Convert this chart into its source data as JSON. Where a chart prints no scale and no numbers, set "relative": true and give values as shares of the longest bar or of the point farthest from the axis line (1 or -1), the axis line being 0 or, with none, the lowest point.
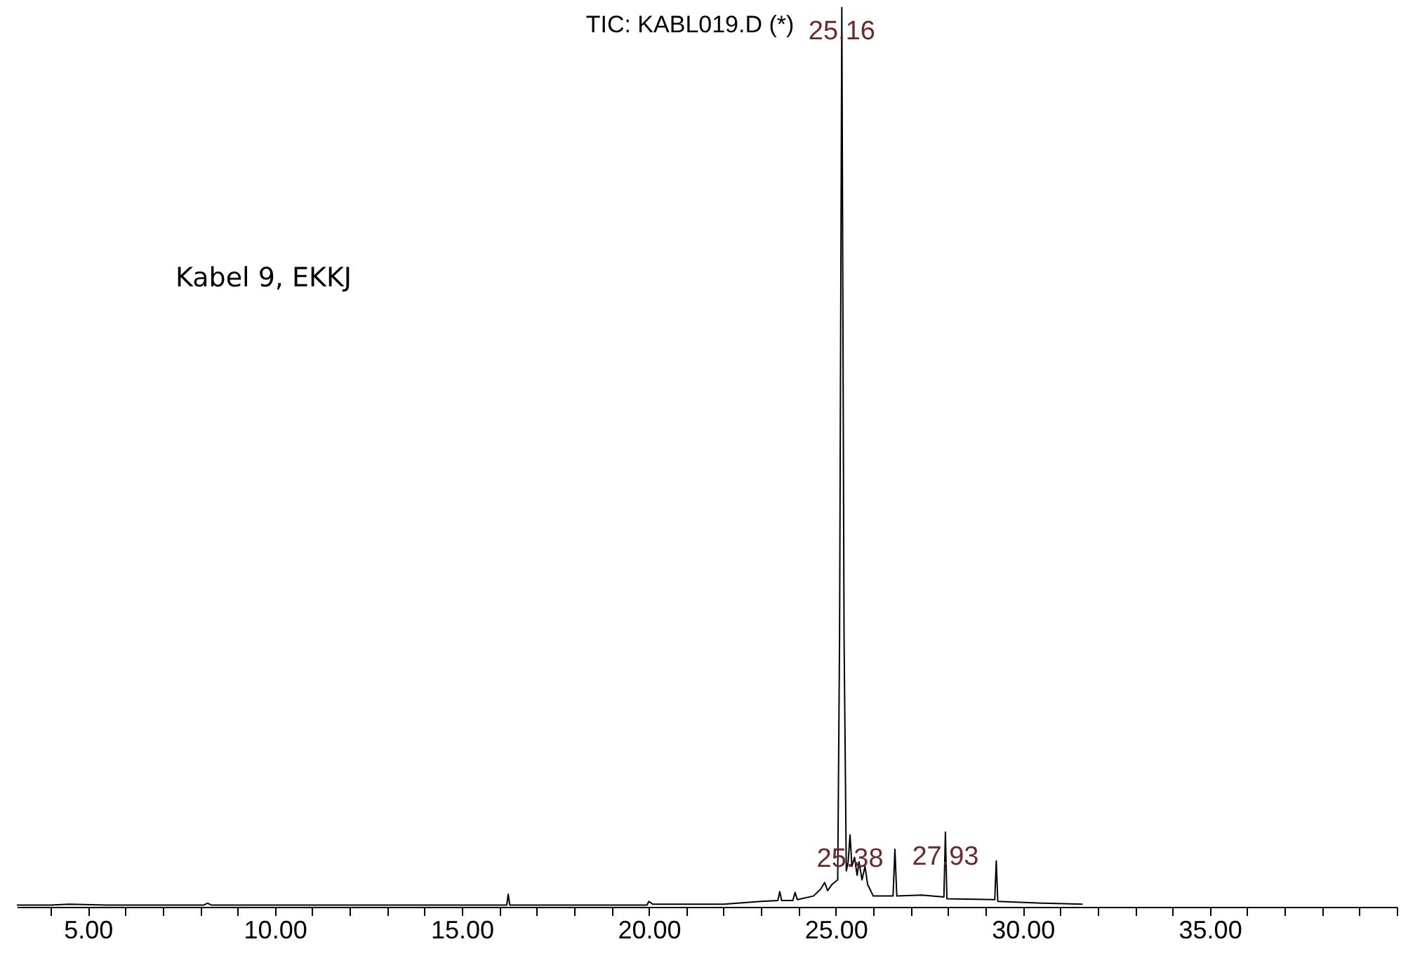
{
  "chart_data": {
    "type": "line",
    "title": "TIC: KABL019.D (*)",
    "relative": true,
    "x": [
      3.1,
      4.0,
      4.5,
      5.5,
      8.1,
      8.2,
      8.3,
      12,
      16.2,
      16.24,
      16.28,
      19.95,
      20.0,
      20.1,
      22,
      23.0,
      23.45,
      23.5,
      23.55,
      23.85,
      23.91,
      23.97,
      24.4,
      24.6,
      24.7,
      24.78,
      24.9,
      25.05,
      25.1,
      25.16,
      25.22,
      25.28,
      25.33,
      25.38,
      25.43,
      25.5,
      25.57,
      25.62,
      25.7,
      25.78,
      25.85,
      26.0,
      26.53,
      26.58,
      26.63,
      27.3,
      27.89,
      27.93,
      27.97,
      29.25,
      29.29,
      29.33,
      30.5,
      31.6
    ],
    "series": [
      {
        "color": "#000000",
        "values": [
          0.002,
          0.002,
          0.003,
          0.002,
          0.002,
          0.004,
          0.002,
          0.002,
          0.002,
          0.014,
          0.002,
          0.002,
          0.006,
          0.003,
          0.003,
          0.006,
          0.007,
          0.017,
          0.007,
          0.007,
          0.016,
          0.008,
          0.012,
          0.02,
          0.027,
          0.018,
          0.025,
          0.03,
          0.3,
          1.0,
          0.3,
          0.04,
          0.05,
          0.08,
          0.045,
          0.055,
          0.035,
          0.05,
          0.03,
          0.045,
          0.025,
          0.012,
          0.012,
          0.064,
          0.012,
          0.013,
          0.011,
          0.083,
          0.009,
          0.008,
          0.051,
          0.006,
          0.004,
          0.003
        ]
      }
    ],
    "xlim": [
      3.1,
      40.0
    ],
    "xticks": [
      {
        "value": 4,
        "label": null
      },
      {
        "value": 5,
        "label": "5.00"
      },
      {
        "value": 6,
        "label": null
      },
      {
        "value": 7,
        "label": null
      },
      {
        "value": 8,
        "label": null
      },
      {
        "value": 9,
        "label": null
      },
      {
        "value": 10,
        "label": "10.00"
      },
      {
        "value": 11,
        "label": null
      },
      {
        "value": 12,
        "label": null
      },
      {
        "value": 13,
        "label": null
      },
      {
        "value": 14,
        "label": null
      },
      {
        "value": 15,
        "label": "15.00"
      },
      {
        "value": 16,
        "label": null
      },
      {
        "value": 17,
        "label": null
      },
      {
        "value": 18,
        "label": null
      },
      {
        "value": 19,
        "label": null
      },
      {
        "value": 20,
        "label": "20.00"
      },
      {
        "value": 21,
        "label": null
      },
      {
        "value": 22,
        "label": null
      },
      {
        "value": 23,
        "label": null
      },
      {
        "value": 24,
        "label": null
      },
      {
        "value": 25,
        "label": "25.00"
      },
      {
        "value": 26,
        "label": null
      },
      {
        "value": 27,
        "label": null
      },
      {
        "value": 28,
        "label": null
      },
      {
        "value": 29,
        "label": null
      },
      {
        "value": 30,
        "label": "30.00"
      },
      {
        "value": 31,
        "label": null
      },
      {
        "value": 32,
        "label": null
      },
      {
        "value": 33,
        "label": null
      },
      {
        "value": 34,
        "label": null
      },
      {
        "value": 35,
        "label": "35.00"
      },
      {
        "value": 36,
        "label": null
      },
      {
        "value": 37,
        "label": null
      },
      {
        "value": 38,
        "label": null
      },
      {
        "value": 39,
        "label": null
      },
      {
        "value": 40,
        "label": null
      }
    ],
    "annotations": [
      {
        "text": "25.16",
        "x": 25.16,
        "y": 1.0
      },
      {
        "text": "25.38",
        "x": 25.38,
        "y": 0.08
      },
      {
        "text": "27.93",
        "x": 27.93,
        "y": 0.083
      },
      "Kabel 9, EKKJ"
    ],
    "grid": false,
    "marker": "none",
    "line_style": "solid"
  }
}
